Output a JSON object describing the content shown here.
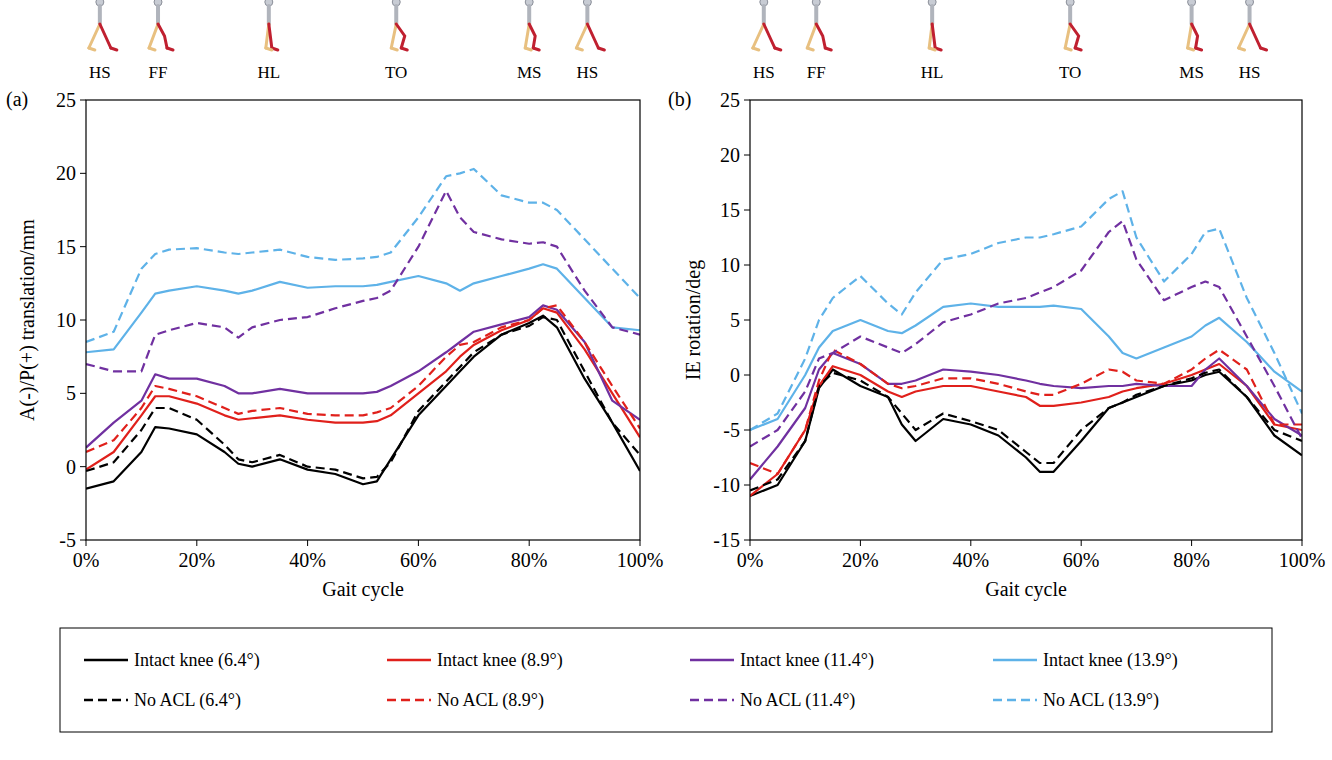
{
  "chart_data": [
    {
      "type": "line",
      "title": "(a)",
      "annotations": [
        "HS",
        "FF",
        "HL",
        "TO",
        "MS",
        "HS"
      ],
      "x_label": "Gait cycle",
      "y_label": "A(-)/P(+) translation/mm",
      "x": [
        0,
        5,
        10,
        12.5,
        15,
        20,
        25,
        27.5,
        30,
        35,
        40,
        45,
        50,
        52.5,
        55,
        60,
        65,
        67.5,
        70,
        75,
        80,
        82.5,
        85,
        90,
        95,
        100
      ],
      "xlim": [
        0,
        100
      ],
      "xticks": [
        {
          "value": 0,
          "label": "0%"
        },
        {
          "value": 20,
          "label": "20%"
        },
        {
          "value": 40,
          "label": "40%"
        },
        {
          "value": 60,
          "label": "60%"
        },
        {
          "value": 80,
          "label": "80%"
        },
        {
          "value": 100,
          "label": "100%"
        }
      ],
      "ylim": [
        -5,
        25
      ],
      "yticks": [
        -5,
        0,
        5,
        10,
        15,
        20,
        25
      ],
      "grid": false,
      "legend": "bottom",
      "series": [
        {
          "name": "Intact knee (6.4°)",
          "color": "#000000",
          "line_style": "solid",
          "values": [
            -1.5,
            -1.0,
            1.0,
            2.7,
            2.6,
            2.2,
            1.0,
            0.2,
            0.0,
            0.5,
            -0.2,
            -0.5,
            -1.2,
            -1.0,
            0.5,
            3.5,
            5.5,
            6.5,
            7.5,
            9.0,
            9.8,
            10.3,
            9.5,
            6.0,
            3.0,
            -0.3
          ]
        },
        {
          "name": "Intact knee (8.9°)",
          "color": "#e0201b",
          "line_style": "solid",
          "values": [
            -0.2,
            1.0,
            3.5,
            4.8,
            4.8,
            4.3,
            3.5,
            3.2,
            3.3,
            3.5,
            3.2,
            3.0,
            3.0,
            3.1,
            3.5,
            5.0,
            6.5,
            7.5,
            8.3,
            9.3,
            10.0,
            10.8,
            10.5,
            8.0,
            5.0,
            2.0
          ]
        },
        {
          "name": "Intact knee (11.4°)",
          "color": "#7030a0",
          "line_style": "solid",
          "values": [
            1.3,
            3.0,
            4.5,
            6.3,
            6.0,
            6.0,
            5.5,
            5.0,
            5.0,
            5.3,
            5.0,
            5.0,
            5.0,
            5.1,
            5.5,
            6.5,
            7.8,
            8.5,
            9.2,
            9.7,
            10.2,
            11.0,
            10.7,
            8.5,
            4.5,
            3.2
          ]
        },
        {
          "name": "Intact knee (13.9°)",
          "color": "#5eb2e8",
          "line_style": "solid",
          "values": [
            7.8,
            8.0,
            10.5,
            11.8,
            12.0,
            12.3,
            12.0,
            11.8,
            12.0,
            12.6,
            12.2,
            12.3,
            12.3,
            12.4,
            12.6,
            13.0,
            12.5,
            12.0,
            12.5,
            13.0,
            13.5,
            13.8,
            13.5,
            11.5,
            9.5,
            9.3
          ]
        },
        {
          "name": "No ACL (6.4°)",
          "color": "#000000",
          "line_style": "dashed",
          "values": [
            -0.3,
            0.3,
            2.5,
            4.0,
            4.0,
            3.2,
            1.5,
            0.5,
            0.3,
            0.8,
            0.0,
            -0.2,
            -0.8,
            -0.7,
            0.3,
            3.8,
            5.8,
            6.8,
            7.8,
            9.0,
            9.6,
            10.2,
            10.0,
            6.5,
            3.0,
            0.8
          ]
        },
        {
          "name": "No ACL (8.9°)",
          "color": "#e0201b",
          "line_style": "dashed",
          "values": [
            1.0,
            1.8,
            4.0,
            5.5,
            5.3,
            4.8,
            4.0,
            3.6,
            3.8,
            4.0,
            3.6,
            3.5,
            3.5,
            3.7,
            4.0,
            5.5,
            7.5,
            8.3,
            8.5,
            9.5,
            10.0,
            10.8,
            11.0,
            8.5,
            5.5,
            2.6
          ]
        },
        {
          "name": "No ACL (11.4°)",
          "color": "#7030a0",
          "line_style": "dashed",
          "values": [
            7.0,
            6.5,
            6.5,
            9.0,
            9.3,
            9.8,
            9.5,
            8.8,
            9.5,
            10.0,
            10.2,
            10.8,
            11.3,
            11.5,
            12.0,
            15.0,
            18.8,
            17.0,
            16.0,
            15.5,
            15.2,
            15.3,
            15.0,
            12.0,
            9.5,
            9.0
          ]
        },
        {
          "name": "No ACL (13.9°)",
          "color": "#5eb2e8",
          "line_style": "dashed",
          "values": [
            8.5,
            9.2,
            13.5,
            14.5,
            14.8,
            14.9,
            14.6,
            14.5,
            14.6,
            14.8,
            14.3,
            14.1,
            14.2,
            14.3,
            14.6,
            17.0,
            19.8,
            20.0,
            20.3,
            18.5,
            18.0,
            18.0,
            17.5,
            15.5,
            13.5,
            11.5
          ]
        }
      ]
    },
    {
      "type": "line",
      "title": "(b)",
      "annotations": [
        "HS",
        "FF",
        "HL",
        "TO",
        "MS",
        "HS"
      ],
      "x_label": "Gait cycle",
      "y_label": "IE rotation/deg",
      "x": [
        0,
        5,
        10,
        12.5,
        15,
        20,
        25,
        27.5,
        30,
        35,
        40,
        45,
        50,
        52.5,
        55,
        60,
        65,
        67.5,
        70,
        75,
        80,
        82.5,
        85,
        90,
        95,
        100
      ],
      "xlim": [
        0,
        100
      ],
      "xticks": [
        {
          "value": 0,
          "label": "0%"
        },
        {
          "value": 20,
          "label": "20%"
        },
        {
          "value": 40,
          "label": "40%"
        },
        {
          "value": 60,
          "label": "60%"
        },
        {
          "value": 80,
          "label": "80%"
        },
        {
          "value": 100,
          "label": "100%"
        }
      ],
      "ylim": [
        -15,
        25
      ],
      "yticks": [
        -15,
        -10,
        -5,
        0,
        5,
        10,
        15,
        20,
        25
      ],
      "grid": false,
      "legend": "bottom",
      "series": [
        {
          "name": "Intact knee (6.4°)",
          "color": "#000000",
          "line_style": "solid",
          "values": [
            -11.0,
            -10.0,
            -6.0,
            -1.2,
            0.5,
            -1.0,
            -2.0,
            -4.5,
            -6.0,
            -4.0,
            -4.5,
            -5.5,
            -7.5,
            -8.8,
            -8.8,
            -6.0,
            -3.0,
            -2.5,
            -2.0,
            -1.0,
            -0.5,
            0.0,
            0.3,
            -2.0,
            -5.5,
            -7.3
          ]
        },
        {
          "name": "Intact knee (8.9°)",
          "color": "#e0201b",
          "line_style": "solid",
          "values": [
            -11.0,
            -9.0,
            -5.0,
            -1.0,
            0.8,
            0.0,
            -1.5,
            -2.0,
            -1.5,
            -1.0,
            -1.0,
            -1.5,
            -2.0,
            -2.8,
            -2.8,
            -2.5,
            -2.0,
            -1.5,
            -1.2,
            -0.8,
            0.0,
            0.5,
            1.0,
            -1.0,
            -4.5,
            -5.0
          ]
        },
        {
          "name": "Intact knee (11.4°)",
          "color": "#7030a0",
          "line_style": "solid",
          "values": [
            -9.5,
            -6.5,
            -3.0,
            0.5,
            2.0,
            1.0,
            -0.8,
            -0.8,
            -0.5,
            0.5,
            0.3,
            0.0,
            -0.5,
            -0.8,
            -1.0,
            -1.2,
            -1.0,
            -1.0,
            -0.8,
            -1.0,
            -1.0,
            0.5,
            1.5,
            -1.0,
            -4.0,
            -5.5
          ]
        },
        {
          "name": "Intact knee (13.9°)",
          "color": "#5eb2e8",
          "line_style": "solid",
          "values": [
            -5.0,
            -4.0,
            0.0,
            2.5,
            4.0,
            5.0,
            4.0,
            3.8,
            4.5,
            6.2,
            6.5,
            6.2,
            6.2,
            6.2,
            6.3,
            6.0,
            3.5,
            2.0,
            1.5,
            2.5,
            3.5,
            4.5,
            5.2,
            3.0,
            0.3,
            -1.5
          ]
        },
        {
          "name": "No ACL (6.4°)",
          "color": "#000000",
          "line_style": "dashed",
          "values": [
            -10.5,
            -9.5,
            -6.0,
            -1.0,
            0.2,
            -0.5,
            -2.0,
            -3.5,
            -5.0,
            -3.5,
            -4.2,
            -5.0,
            -7.0,
            -8.0,
            -8.0,
            -5.0,
            -3.0,
            -2.5,
            -1.8,
            -1.0,
            -0.3,
            0.2,
            0.5,
            -2.0,
            -5.0,
            -6.0
          ]
        },
        {
          "name": "No ACL (8.9°)",
          "color": "#e0201b",
          "line_style": "dashed",
          "values": [
            -8.0,
            -9.0,
            -5.0,
            -0.5,
            2.3,
            1.0,
            -0.8,
            -1.2,
            -1.0,
            -0.3,
            -0.3,
            -0.8,
            -1.5,
            -1.8,
            -1.8,
            -0.8,
            0.5,
            0.3,
            -0.5,
            -0.8,
            0.5,
            1.5,
            2.3,
            0.5,
            -4.5,
            -4.5
          ]
        },
        {
          "name": "No ACL (11.4°)",
          "color": "#7030a0",
          "line_style": "dashed",
          "values": [
            -6.5,
            -5.0,
            -1.5,
            1.5,
            2.0,
            3.5,
            2.5,
            2.0,
            2.8,
            4.8,
            5.5,
            6.5,
            7.0,
            7.5,
            8.0,
            9.5,
            13.0,
            14.0,
            10.5,
            6.8,
            8.0,
            8.5,
            8.0,
            3.5,
            -1.0,
            -5.8
          ]
        },
        {
          "name": "No ACL (13.9°)",
          "color": "#5eb2e8",
          "line_style": "dashed",
          "values": [
            -5.0,
            -3.5,
            1.5,
            5.0,
            7.0,
            9.0,
            6.5,
            5.5,
            7.5,
            10.5,
            11.0,
            12.0,
            12.5,
            12.5,
            12.8,
            13.5,
            16.0,
            16.7,
            12.5,
            8.5,
            11.0,
            13.0,
            13.3,
            7.0,
            2.0,
            -3.5
          ]
        }
      ]
    }
  ]
}
